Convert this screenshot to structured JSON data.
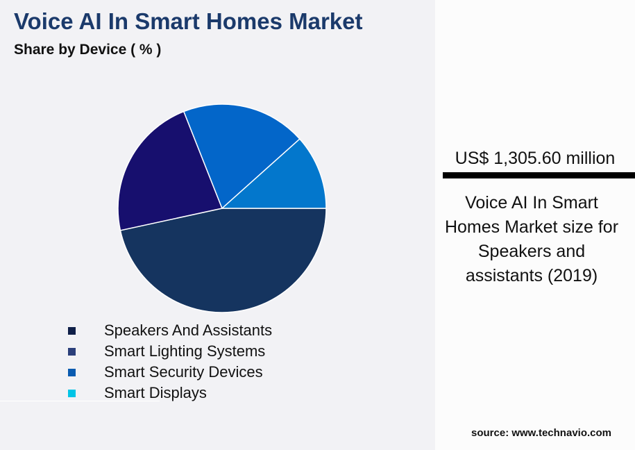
{
  "chart_data": {
    "type": "pie",
    "title": "Voice AI In Smart Homes Market",
    "subtitle": "Share by Device ( % )",
    "legend_position": "bottom-left",
    "series": [
      {
        "name": "Speakers And Assistants",
        "value": 46.6,
        "slice_color": "#15345f",
        "legend_color": "#0f1f48"
      },
      {
        "name": "Smart Lighting Systems",
        "value": 22.4,
        "slice_color": "#170f6e",
        "legend_color": "#2b3f7a"
      },
      {
        "name": "Smart Security Devices",
        "value": 19.4,
        "slice_color": "#0366c9",
        "legend_color": "#0a5bb0"
      },
      {
        "name": "Smart Displays",
        "value": 11.6,
        "slice_color": "#0377cc",
        "legend_color": "#00c4e6"
      }
    ]
  },
  "panel": {
    "value": "US$ 1,305.60 million",
    "description": "Voice AI In Smart Homes Market size for Speakers and assistants (2019)",
    "source": "source: www.technavio.com"
  }
}
